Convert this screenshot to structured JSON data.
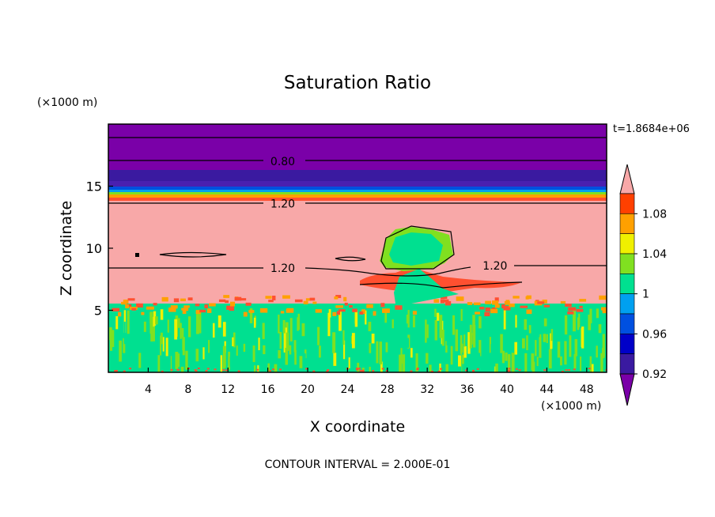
{
  "chart_data": {
    "type": "heatmap",
    "title": "Saturation Ratio",
    "xlabel": "X coordinate",
    "ylabel": "Z coordinate",
    "x_unit": "(×1000 m)",
    "y_unit": "(×1000 m)",
    "time_label": "t=1.8684e+06",
    "footer": "CONTOUR INTERVAL = 2.000E-01",
    "xlim": [
      0,
      50
    ],
    "ylim": [
      0,
      20
    ],
    "xticks": [
      4,
      8,
      12,
      16,
      20,
      24,
      28,
      32,
      36,
      40,
      44,
      48
    ],
    "yticks": [
      5,
      10,
      15
    ],
    "colorbar": {
      "levels": [
        0.92,
        0.94,
        0.96,
        0.98,
        1,
        1.02,
        1.04,
        1.06,
        1.08
      ],
      "tick_labels": [
        "0.92",
        "0.96",
        "1",
        "1.04",
        "1.08"
      ],
      "colors": [
        "#7a00a8",
        "#3a1aa0",
        "#0000c8",
        "#0050e0",
        "#00a0f0",
        "#00e090",
        "#80e020",
        "#f0f000",
        "#ffa000",
        "#ff4000",
        "#f8a8a8"
      ],
      "extend": "both"
    },
    "contour_labels": [
      {
        "text": "0.80",
        "x": 17.5,
        "y": 17.0
      },
      {
        "text": "1.20",
        "x": 17.5,
        "y": 13.6
      },
      {
        "text": "1.20",
        "x": 17.5,
        "y": 8.4
      },
      {
        "text": "1.20",
        "x": 38.8,
        "y": 8.6
      }
    ],
    "layers": [
      {
        "z0": 17.0,
        "z1": 20.0,
        "value": "<0.92"
      },
      {
        "z0": 14.2,
        "z1": 17.0,
        "value": "0.92-0.98"
      },
      {
        "z0": 6.0,
        "z1": 14.0,
        "value": ">1.08"
      },
      {
        "z0": 0.0,
        "z1": 5.5,
        "value": "0.98-1.04"
      }
    ]
  }
}
